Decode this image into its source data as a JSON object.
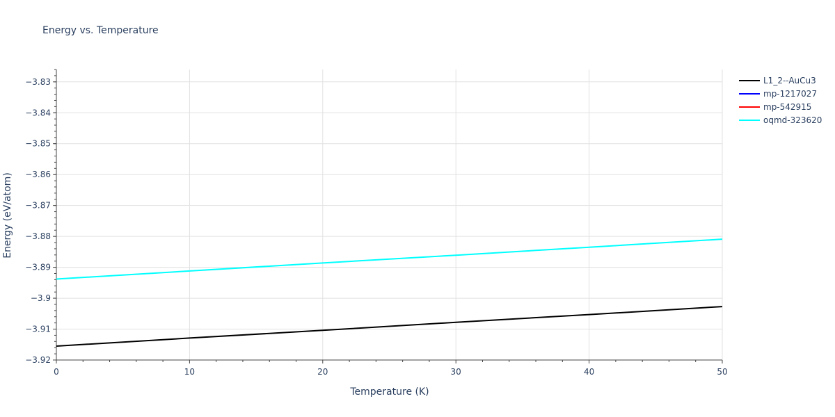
{
  "chart_data": {
    "type": "line",
    "title": "Energy vs. Temperature",
    "xlabel": "Temperature (K)",
    "ylabel": "Energy (eV/atom)",
    "xlim": [
      0,
      50
    ],
    "ylim": [
      -3.92,
      -3.826
    ],
    "xticks": [
      0,
      10,
      20,
      30,
      40,
      50
    ],
    "xtick_labels": [
      "0",
      "10",
      "20",
      "30",
      "40",
      "50"
    ],
    "yticks": [
      -3.83,
      -3.84,
      -3.85,
      -3.86,
      -3.87,
      -3.88,
      -3.89,
      -3.9,
      -3.91,
      -3.92
    ],
    "ytick_labels": [
      "−3.83",
      "−3.84",
      "−3.85",
      "−3.86",
      "−3.87",
      "−3.88",
      "−3.89",
      "−3.9",
      "−3.91",
      "−3.92"
    ],
    "grid": true,
    "legend_position": "right-top",
    "x": [
      0,
      10,
      20,
      30,
      40,
      50
    ],
    "series": [
      {
        "name": "L1_2--AuCu3",
        "color": "#000000",
        "values": [
          -3.9155,
          -3.9129,
          -3.9104,
          -3.9078,
          -3.9053,
          -3.9027
        ]
      },
      {
        "name": "mp-1217027",
        "color": "#0000ff",
        "values": []
      },
      {
        "name": "mp-542915",
        "color": "#ff0000",
        "values": []
      },
      {
        "name": "oqmd-323620",
        "color": "#00ffff",
        "values": [
          -3.8938,
          -3.8912,
          -3.8886,
          -3.8861,
          -3.8835,
          -3.8809
        ]
      }
    ]
  }
}
